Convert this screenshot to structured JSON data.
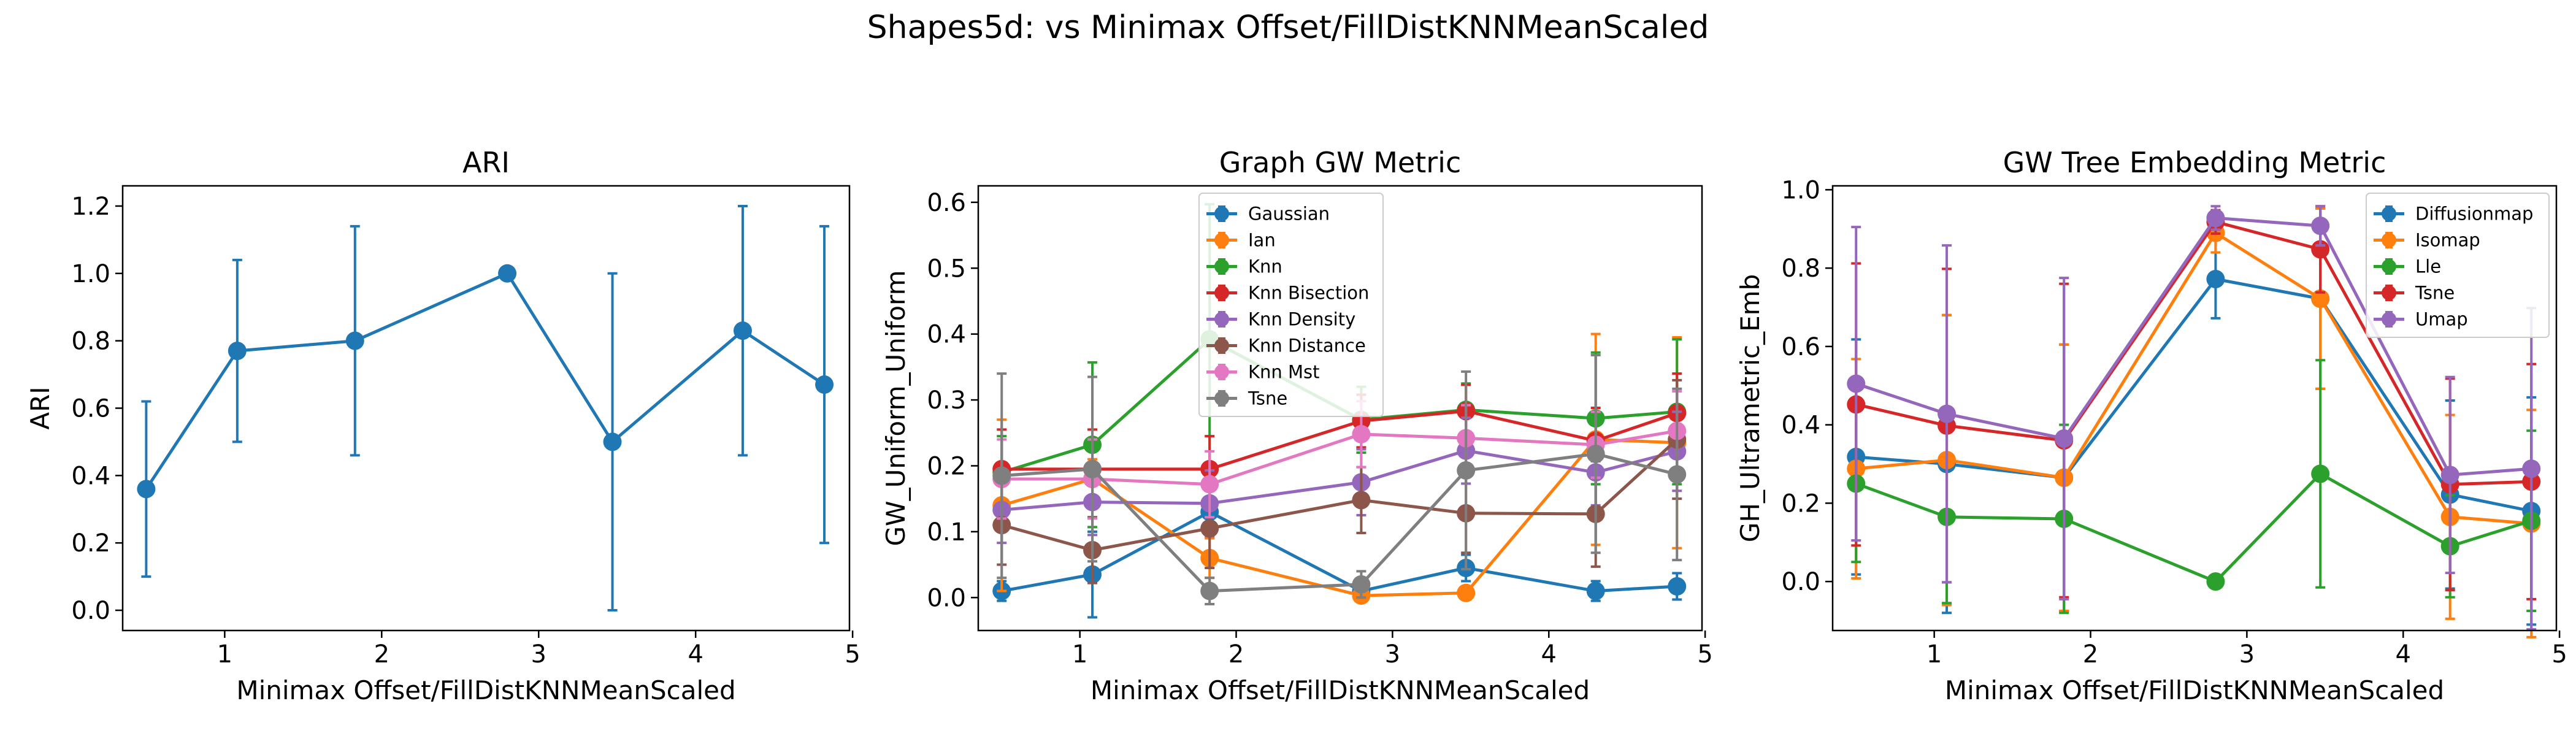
{
  "figure": {
    "suptitle": "Shapes5d: vs Minimax Offset/FillDistKNNMeanScaled"
  },
  "chart_data": [
    {
      "type": "line",
      "title": "ARI",
      "xlabel": "Minimax Offset/FillDistKNNMeanScaled",
      "ylabel": "ARI",
      "xlim": [
        0.35,
        4.98
      ],
      "ylim": [
        -0.06,
        1.26
      ],
      "xticks": [
        1,
        2,
        3,
        4,
        5
      ],
      "yticks": [
        0.0,
        0.2,
        0.4,
        0.6,
        0.8,
        1.0,
        1.2
      ],
      "ytick_labels": [
        "0.0",
        "0.2",
        "0.4",
        "0.6",
        "0.8",
        "1.0",
        "1.2"
      ],
      "x": [
        0.5,
        1.08,
        1.83,
        2.8,
        3.47,
        4.3,
        4.82
      ],
      "error_bars": true,
      "grid": false,
      "legend": null,
      "series": [
        {
          "name": "",
          "color": "#1f77b4",
          "values": [
            0.36,
            0.77,
            0.8,
            1.0,
            0.5,
            0.83,
            0.67
          ],
          "errors": [
            0.26,
            0.27,
            0.34,
            0.0,
            0.5,
            0.37,
            0.47
          ]
        }
      ]
    },
    {
      "type": "line",
      "title": "Graph GW Metric",
      "xlabel": "Minimax Offset/FillDistKNNMeanScaled",
      "ylabel": "GW_Uniform_Uniform",
      "xlim": [
        0.35,
        4.98
      ],
      "ylim": [
        -0.05,
        0.625
      ],
      "xticks": [
        1,
        2,
        3,
        4,
        5
      ],
      "yticks": [
        0.0,
        0.1,
        0.2,
        0.3,
        0.4,
        0.5,
        0.6
      ],
      "ytick_labels": [
        "0.0",
        "0.1",
        "0.2",
        "0.3",
        "0.4",
        "0.5",
        "0.6"
      ],
      "x": [
        0.5,
        1.08,
        1.83,
        2.8,
        3.47,
        4.3,
        4.82
      ],
      "error_bars": true,
      "grid": false,
      "legend": "upper-center",
      "series": [
        {
          "name": "Gaussian",
          "color": "#1f77b4",
          "values": [
            0.01,
            0.035,
            0.13,
            0.01,
            0.045,
            0.01,
            0.017
          ],
          "errors": [
            0.015,
            0.065,
            0.02,
            0.01,
            0.02,
            0.015,
            0.02
          ]
        },
        {
          "name": "Ian",
          "color": "#ff7f0e",
          "values": [
            0.14,
            0.18,
            0.06,
            0.003,
            0.007,
            0.24,
            0.235
          ],
          "errors": [
            0.13,
            0.03,
            0.03,
            0.005,
            0.008,
            0.16,
            0.16
          ]
        },
        {
          "name": "Knn",
          "color": "#2ca02c",
          "values": [
            0.19,
            0.232,
            0.392,
            0.27,
            0.285,
            0.272,
            0.282
          ],
          "errors": [
            0.055,
            0.125,
            0.205,
            0.05,
            0.04,
            0.1,
            0.11
          ]
        },
        {
          "name": "Knn Bisection",
          "color": "#d62728",
          "values": [
            0.195,
            0.195,
            0.195,
            0.268,
            0.283,
            0.238,
            0.28
          ],
          "errors": [
            0.06,
            0.06,
            0.05,
            0.04,
            0.04,
            0.05,
            0.06
          ]
        },
        {
          "name": "Knn Density",
          "color": "#9467bd",
          "values": [
            0.133,
            0.145,
            0.143,
            0.175,
            0.223,
            0.19,
            0.222
          ],
          "errors": [
            0.05,
            0.05,
            0.05,
            0.05,
            0.05,
            0.05,
            0.06
          ]
        },
        {
          "name": "Knn Distance",
          "color": "#8c564b",
          "values": [
            0.11,
            0.072,
            0.105,
            0.148,
            0.128,
            0.127,
            0.24
          ],
          "errors": [
            0.06,
            0.05,
            0.06,
            0.05,
            0.06,
            0.08,
            0.09
          ]
        },
        {
          "name": "Knn Mst",
          "color": "#e377c2",
          "values": [
            0.18,
            0.18,
            0.172,
            0.248,
            0.242,
            0.232,
            0.253
          ],
          "errors": [
            0.06,
            0.06,
            0.05,
            0.05,
            0.05,
            0.05,
            0.06
          ]
        },
        {
          "name": "Tsne",
          "color": "#7f7f7f",
          "values": [
            0.185,
            0.195,
            0.01,
            0.02,
            0.193,
            0.218,
            0.187
          ],
          "errors": [
            0.155,
            0.14,
            0.02,
            0.02,
            0.15,
            0.15,
            0.13
          ]
        }
      ]
    },
    {
      "type": "line",
      "title": "GW Tree Embedding Metric",
      "xlabel": "Minimax Offset/FillDistKNNMeanScaled",
      "ylabel": "GH_Ultrametric_Emb",
      "xlim": [
        0.35,
        4.98
      ],
      "ylim": [
        -0.125,
        1.01
      ],
      "xticks": [
        1,
        2,
        3,
        4,
        5
      ],
      "yticks": [
        0.0,
        0.2,
        0.4,
        0.6,
        0.8,
        1.0
      ],
      "ytick_labels": [
        "0.0",
        "0.2",
        "0.4",
        "0.6",
        "0.8",
        "1.0"
      ],
      "x": [
        0.5,
        1.08,
        1.83,
        2.8,
        3.47,
        4.3,
        4.82
      ],
      "error_bars": true,
      "grid": false,
      "legend": "upper-right",
      "series": [
        {
          "name": "Diffusionmap",
          "color": "#1f77b4",
          "values": [
            0.318,
            0.3,
            0.265,
            0.772,
            0.722,
            0.222,
            0.18
          ],
          "errors": [
            0.3,
            0.38,
            0.34,
            0.1,
            0.23,
            0.24,
            0.29
          ]
        },
        {
          "name": "Isomap",
          "color": "#ff7f0e",
          "values": [
            0.288,
            0.31,
            0.265,
            0.89,
            0.722,
            0.165,
            0.148
          ],
          "errors": [
            0.28,
            0.37,
            0.34,
            0.05,
            0.23,
            0.26,
            0.29
          ]
        },
        {
          "name": "Lle",
          "color": "#2ca02c",
          "values": [
            0.25,
            0.165,
            0.16,
            0.0,
            0.275,
            0.09,
            0.155
          ],
          "errors": [
            0.2,
            0.22,
            0.24,
            0.01,
            0.29,
            0.13,
            0.23
          ]
        },
        {
          "name": "Tsne",
          "color": "#d62728",
          "values": [
            0.452,
            0.398,
            0.36,
            0.918,
            0.848,
            0.248,
            0.255
          ],
          "errors": [
            0.36,
            0.4,
            0.4,
            0.03,
            0.11,
            0.27,
            0.3
          ]
        },
        {
          "name": "Umap",
          "color": "#9467bd",
          "values": [
            0.505,
            0.428,
            0.365,
            0.928,
            0.908,
            0.272,
            0.288
          ],
          "errors": [
            0.4,
            0.43,
            0.41,
            0.03,
            0.05,
            0.25,
            0.41
          ]
        }
      ]
    }
  ]
}
